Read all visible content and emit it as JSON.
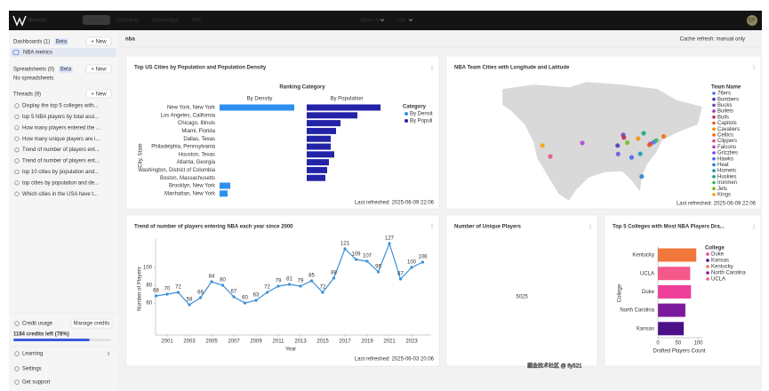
{
  "nav": {
    "logo": "WrenAI",
    "tabs": [
      "Home",
      "Modeling",
      "Knowledge",
      "API"
    ],
    "project": "Wren AI",
    "dataset": "nba",
    "avatar": "EF"
  },
  "sidebar": {
    "dashboards": {
      "title": "Dashboards (1)",
      "badge": "Beta",
      "new": "+ New",
      "items": [
        "NBA metrics"
      ]
    },
    "spreadsheets": {
      "title": "Spreadsheets (0)",
      "badge": "Beta",
      "new": "+ New",
      "empty": "No spreadsheets"
    },
    "threads": {
      "title": "Threads (9)",
      "new": "+ New",
      "items": [
        "Display the top 5 colleges with...",
        "top 5 NBA players by total assi...",
        "How many players entered the ...",
        "How many unique players are i...",
        "Trend of number of players ent...",
        "Trend of number of players ent...",
        "top 10 cities by population and...",
        "top cities by population and de...",
        "Which cities in the USA have t..."
      ]
    },
    "credit": {
      "title": "Credit usage",
      "manage": "Manage credits",
      "left": "1184 credits left (78%)",
      "percent": 78
    },
    "links": [
      "Learning",
      "Settings",
      "Get support"
    ]
  },
  "header": {
    "title": "nba",
    "cache": "Cache refresh: manual only"
  },
  "watermark": "掘金技术社区 @ fly521",
  "chart_data": [
    {
      "type": "faceted-bar",
      "title": "Top US Cities by Population and Population Density",
      "subtitle": "Ranking Category",
      "y_label": "City, State",
      "legend_title": "Category",
      "legend_labels": [
        "By Densit",
        "By Populi"
      ],
      "categories": [
        "New York, New York",
        "Los Angeles, California",
        "Chicago, Illinois",
        "Miami, Florida",
        "Dallas, Texas",
        "Philadelphia, Pennsylvania",
        "Houston, Texas",
        "Atlanta, Georgia",
        "Washington, District of Columbia",
        "Boston, Massachusetts",
        "Brooklyn, New York",
        "Manhattan, New York"
      ],
      "series": [
        {
          "name": "By Density",
          "color": "#2f8ff0",
          "xlim": [
            0,
            30000
          ],
          "values": [
            28000,
            null,
            null,
            null,
            null,
            null,
            null,
            null,
            null,
            null,
            4000,
            3000
          ]
        },
        {
          "name": "By Population",
          "color": "#2323a8",
          "xlim": [
            0,
            9
          ],
          "values": [
            8.3,
            5.7,
            3.8,
            3.3,
            2.7,
            2.7,
            3.1,
            2.5,
            2.3,
            2.1,
            null,
            null
          ]
        }
      ],
      "footer": "Last refreshed: 2025-06-09 22:06"
    },
    {
      "type": "map",
      "title": "NBA Team Cities with Longitude and Latitude",
      "legend_title": "Team Name",
      "xlim": [
        -140,
        -55
      ],
      "ylim": [
        15,
        65
      ],
      "points": [
        {
          "name": "76ers",
          "color": "#4c6ef5",
          "lon": -75.2,
          "lat": 40.0
        },
        {
          "name": "Bombers",
          "color": "#3b3bb3",
          "lon": -90.2,
          "lat": 38.6
        },
        {
          "name": "Bucks",
          "color": "#6a3fb5",
          "lon": -87.9,
          "lat": 43.0
        },
        {
          "name": "Bullets",
          "color": "#9c36b5",
          "lon": -76.6,
          "lat": 39.3
        },
        {
          "name": "Bulls",
          "color": "#c2255c",
          "lon": -87.6,
          "lat": 41.9
        },
        {
          "name": "Capitols",
          "color": "#e8590c",
          "lon": -77.0,
          "lat": 38.9
        },
        {
          "name": "Cavaliers",
          "color": "#f08c00",
          "lon": -81.7,
          "lat": 41.5
        },
        {
          "name": "Celtics",
          "color": "#f76707",
          "lon": -71.1,
          "lat": 42.4
        },
        {
          "name": "Clippers",
          "color": "#e64980",
          "lon": -118.2,
          "lat": 34.1
        },
        {
          "name": "Falcons",
          "color": "#ae3ec9",
          "lon": -104.9,
          "lat": 39.7
        },
        {
          "name": "Grizzlies",
          "color": "#7048e8",
          "lon": -90.0,
          "lat": 35.1
        },
        {
          "name": "Hawks",
          "color": "#4263eb",
          "lon": -84.4,
          "lat": 33.7
        },
        {
          "name": "Heat",
          "color": "#1c7ed6",
          "lon": -80.2,
          "lat": 25.8
        },
        {
          "name": "Hornets",
          "color": "#1098ad",
          "lon": -80.8,
          "lat": 35.2
        },
        {
          "name": "Huskies",
          "color": "#0ca678",
          "lon": -79.4,
          "lat": 43.7
        },
        {
          "name": "Ironmen",
          "color": "#37b24d",
          "lon": -74.2,
          "lat": 40.7
        },
        {
          "name": "Jets",
          "color": "#74b816",
          "lon": -86.2,
          "lat": 39.8
        },
        {
          "name": "Kings",
          "color": "#f59f00",
          "lon": -121.5,
          "lat": 38.6
        }
      ],
      "footer": "Last refreshed: 2025-06-09 22:06"
    },
    {
      "type": "line",
      "title": "Trend of number of players entering NBA each year since 2000",
      "color": "#3a8fd8",
      "x": [
        2000,
        2001,
        2002,
        2003,
        2004,
        2005,
        2006,
        2007,
        2008,
        2009,
        2010,
        2011,
        2012,
        2013,
        2014,
        2015,
        2016,
        2017,
        2018,
        2019,
        2020,
        2021,
        2022,
        2023,
        2024
      ],
      "values": [
        68,
        70,
        72,
        58,
        66,
        84,
        80,
        67,
        60,
        63,
        72,
        79,
        81,
        79,
        85,
        72,
        88,
        121,
        109,
        107,
        95,
        127,
        87,
        100,
        106
      ],
      "xlim": [
        1999,
        2025
      ],
      "ylim": [
        25,
        135
      ],
      "xticks": [
        2001,
        2003,
        2005,
        2007,
        2009,
        2011,
        2013,
        2015,
        2017,
        2019,
        2021,
        2023
      ],
      "yticks": [
        60,
        80,
        100
      ],
      "x_label": "Year",
      "y_label": "Number of Players",
      "footer": "Last refreshed: 2025-06-03 20:06"
    },
    {
      "type": "number",
      "title": "Number of Unique Players",
      "value": 5025
    },
    {
      "type": "hbar",
      "title": "Top 5 Colleges with Most NBA Players Dra...",
      "categories": [
        "Kentucky",
        "UCLA",
        "Duke",
        "North Carolina",
        "Kansas"
      ],
      "values": [
        95,
        80,
        82,
        68,
        64
      ],
      "colors": [
        "#f2773a",
        "#f5588a",
        "#ee3f9a",
        "#7c1a9e",
        "#4b0f8a"
      ],
      "xlim": [
        0,
        110
      ],
      "xticks": [
        0,
        50,
        100
      ],
      "x_label": "Drafted Players Count",
      "y_label": "College",
      "legend_title": "College",
      "legend": [
        {
          "name": "Duke",
          "color": "#ee3f9a"
        },
        {
          "name": "Kansas",
          "color": "#4b0f8a"
        },
        {
          "name": "Kentucky",
          "color": "#f2773a"
        },
        {
          "name": "North Carolina",
          "color": "#7c1a9e"
        },
        {
          "name": "UCLA",
          "color": "#f5588a"
        }
      ]
    }
  ]
}
